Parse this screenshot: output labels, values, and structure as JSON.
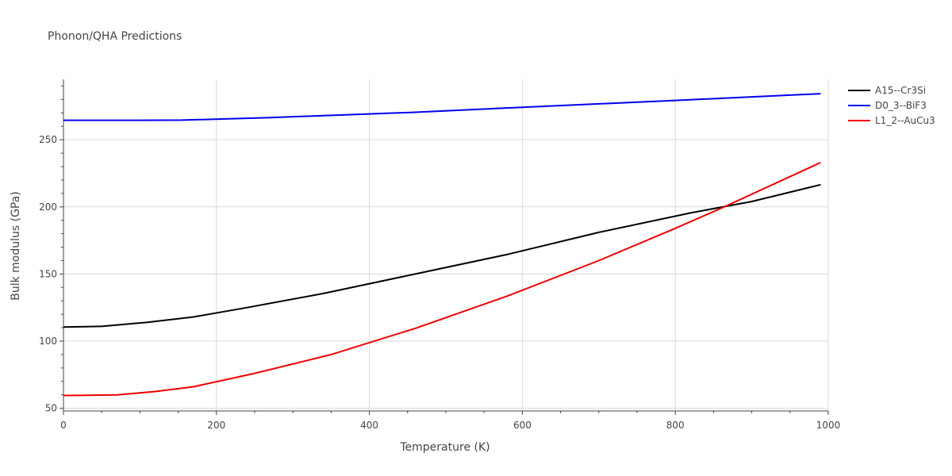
{
  "chart_data": {
    "type": "line",
    "title": "Phonon/QHA Predictions",
    "xlabel": "Temperature (K)",
    "ylabel": "Bulk modulus (GPa)",
    "xlim": [
      0,
      1000
    ],
    "ylim": [
      48,
      295
    ],
    "x_ticks": [
      0,
      200,
      400,
      600,
      800,
      1000
    ],
    "y_ticks": [
      50,
      100,
      150,
      200,
      250
    ],
    "x_ticklabels": [
      "0",
      "200",
      "400",
      "600",
      "800",
      "1000"
    ],
    "y_ticklabels": [
      "50",
      "100",
      "150",
      "200",
      "250"
    ],
    "grid": true,
    "legend_position": "top-right",
    "series": [
      {
        "name": "A15--Cr3Si",
        "color": "#000000",
        "x": [
          0,
          50,
          60,
          110,
          170,
          240,
          340,
          460,
          580,
          700,
          820,
          900,
          990
        ],
        "y": [
          110.5,
          111,
          111.5,
          114,
          118,
          125,
          135.5,
          150,
          164.5,
          181,
          195.5,
          204,
          216.5
        ]
      },
      {
        "name": "D0_3--BiF3",
        "color": "#0000ee",
        "x": [
          0,
          50,
          100,
          155,
          270,
          460,
          600,
          800,
          990
        ],
        "y": [
          264.5,
          264.5,
          264.5,
          264.6,
          266.5,
          270.5,
          274.2,
          279.3,
          284.3
        ]
      },
      {
        "name": "L1_2--AuCu3",
        "color": "#ee0000",
        "x": [
          0,
          20,
          70,
          120,
          170,
          250,
          350,
          460,
          580,
          700,
          800,
          860,
          990
        ],
        "y": [
          59.5,
          59.6,
          60,
          62.5,
          66,
          76,
          90,
          109.5,
          133.5,
          160,
          184,
          199,
          233
        ]
      }
    ]
  }
}
